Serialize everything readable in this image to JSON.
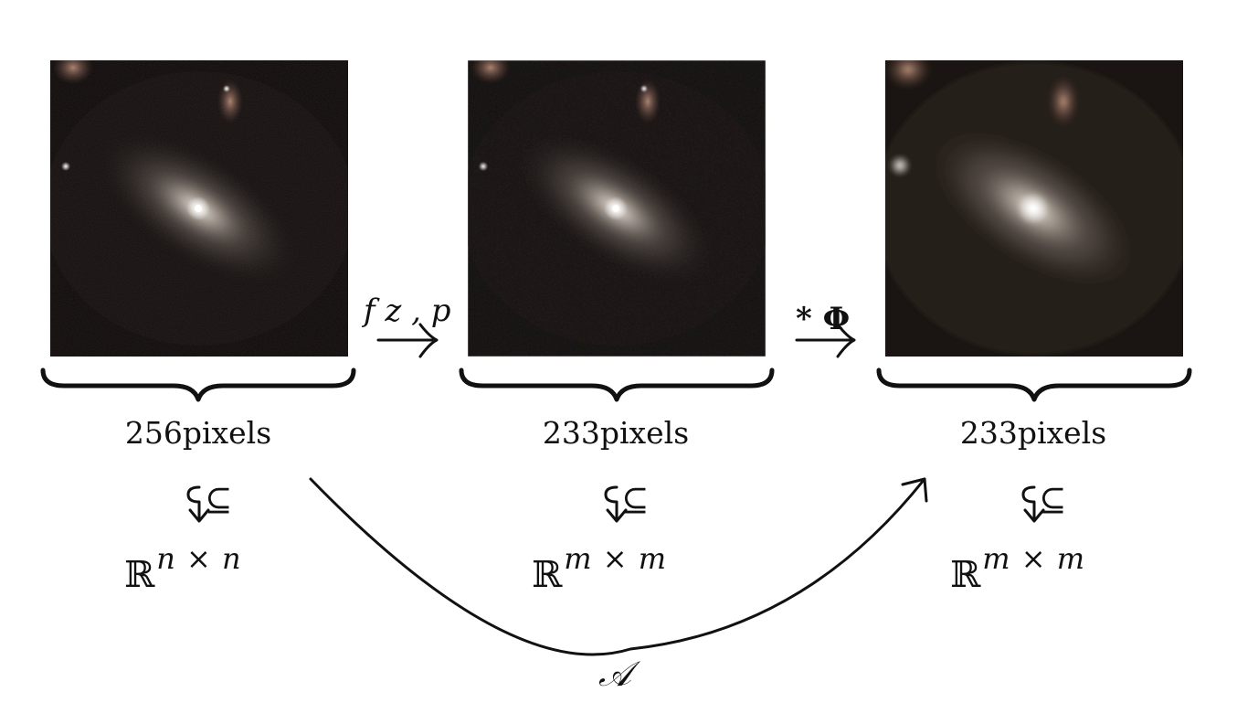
{
  "panels": [
    {
      "label": "256pixels",
      "set_base": "ℝ",
      "set_exp": "n × n",
      "subset": "⊆",
      "blur": 0
    },
    {
      "label": "233pixels",
      "set_base": "ℝ",
      "set_exp": "m × m",
      "subset": "⊆",
      "blur": 0.4
    },
    {
      "label": "233pixels",
      "set_base": "ℝ",
      "set_exp": "m × m",
      "subset": "⊆",
      "blur": 2.4
    }
  ],
  "operators": {
    "first": "f z , p",
    "second": "* Φ",
    "composite": "𝒜"
  },
  "colors": {
    "background": "#ffffff",
    "ink": "#111111",
    "sky": "#0d0807",
    "galaxy": "#f2ece4"
  }
}
